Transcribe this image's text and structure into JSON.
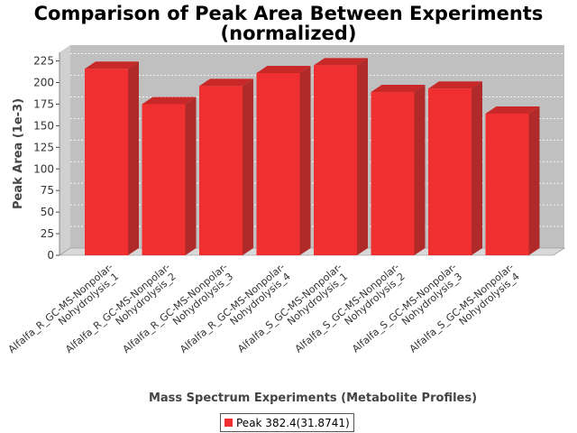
{
  "colors": {
    "bar_front": "#f03030",
    "bar_side": "#b02a2a",
    "bar_top": "#c82828",
    "plot_bg": "#c0c0c0",
    "wall_left": "#d0d0d0",
    "floor": "#d8d8d8"
  },
  "chart_data": {
    "type": "bar",
    "title_lines": [
      "Comparison of Peak Area Between Experiments",
      "(normalized)"
    ],
    "xlabel": "Mass Spectrum Experiments (Metabolite Profiles)",
    "ylabel": "Peak Area (1e-3)",
    "ylim": [
      0,
      235
    ],
    "yticks": [
      0,
      25,
      50,
      75,
      100,
      125,
      150,
      175,
      200,
      225
    ],
    "grid": true,
    "three_d": true,
    "legend_position": "bottom-center",
    "categories": [
      [
        "Alfalfa_R_GC-MS-Nonpolar-",
        "Nohydrolysis_1"
      ],
      [
        "Alfalfa_R_GC-MS-Nonpolar-",
        "Nohydrolysis_2"
      ],
      [
        "Alfalfa_R_GC-MS-Nonpolar-",
        "Nohydrolysis_3"
      ],
      [
        "Alfalfa_R_GC-MS-Nonpolar-",
        "Nohydrolysis_4"
      ],
      [
        "Alfalfa_S_GC-MS-Nonpolar-",
        "Nohydrolysis_1"
      ],
      [
        "Alfalfa_S_GC-MS-Nonpolar-",
        "Nohydrolysis_2"
      ],
      [
        "Alfalfa_S_GC-MS-Nonpolar-",
        "Nohydrolysis_3"
      ],
      [
        "Alfalfa_S_GC-MS-Nonpolar-",
        "Nohydrolysis_4"
      ]
    ],
    "series": [
      {
        "name": "Peak 382.4(31.8741)",
        "values": [
          216,
          175,
          196,
          211,
          220,
          189,
          193,
          164
        ]
      }
    ]
  }
}
